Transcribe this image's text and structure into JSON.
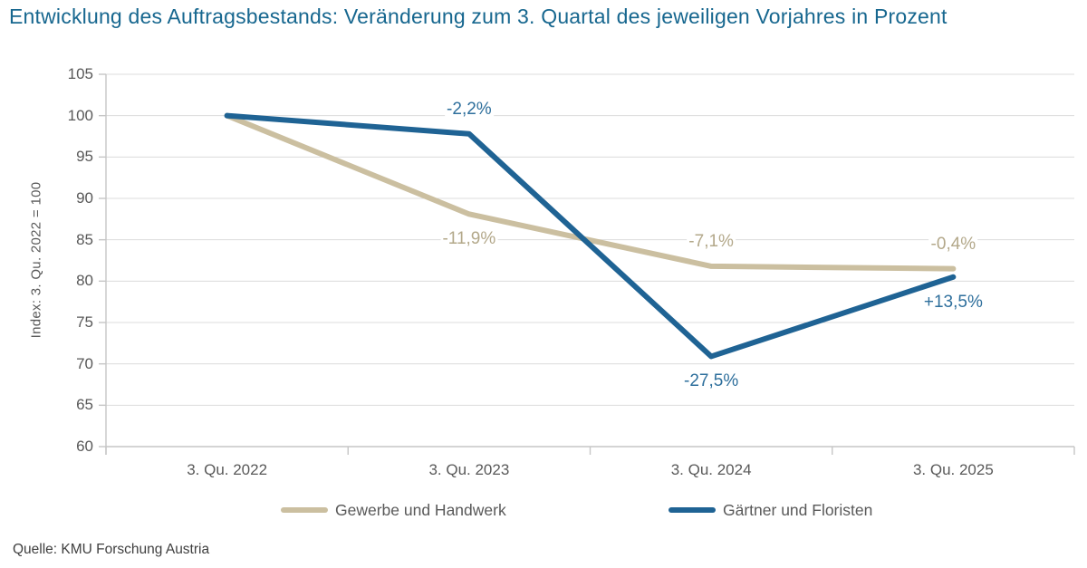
{
  "title": "Entwicklung des Auftragsbestands: Veränderung zum 3. Quartal des jeweiligen Vorjahres in Prozent",
  "source": "Quelle: KMU Forschung Austria",
  "colors": {
    "title": "#17678F",
    "axis_line": "#c6c6c6",
    "gridline": "#dcdcdc",
    "axis_text": "#595959"
  },
  "chart_data": {
    "type": "line",
    "categories": [
      "3. Qu. 2022",
      "3. Qu. 2023",
      "3. Qu. 2024",
      "3. Qu. 2025"
    ],
    "y_axis": {
      "label": "Index: 3. Qu. 2022 = 100",
      "min": 60,
      "max": 105,
      "step": 5
    },
    "grid": "horizontal",
    "legend_position": "bottom",
    "series": [
      {
        "name": "Gewerbe und Handwerk",
        "color": "#CBBFA0",
        "label_color": "#B3A88A",
        "values": [
          100,
          88.1,
          81.8,
          81.5
        ],
        "point_labels": [
          null,
          "-11,9%",
          "-7,1%",
          "-0,4%"
        ],
        "label_positions": [
          null,
          "below",
          "above",
          "above"
        ]
      },
      {
        "name": "Gärtner und Floristen",
        "color": "#1F6394",
        "label_color": "#2E6F9C",
        "values": [
          100,
          97.8,
          70.9,
          80.5
        ],
        "point_labels": [
          null,
          "-2,2%",
          "-27,5%",
          "+13,5%"
        ],
        "label_positions": [
          null,
          "above",
          "below",
          "below"
        ]
      }
    ]
  }
}
